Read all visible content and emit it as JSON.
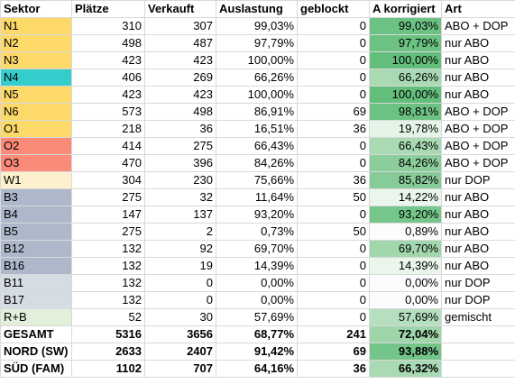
{
  "colors": {
    "yellow": "#fdd96a",
    "cyan": "#35cccc",
    "salmon": "#fb8b78",
    "cream": "#fdf0cd",
    "steel": "#adb9ca",
    "lightsteel": "#d6dce4",
    "lightgreen": "#e2efda",
    "green_strong": "#63be7b"
  },
  "headers": [
    "Sektor",
    "Plätze",
    "Verkauft",
    "Auslastung",
    "geblockt",
    "A korrigiert",
    "Art"
  ],
  "rows": [
    {
      "sektor": "N1",
      "plaetze": "310",
      "verkauft": "307",
      "auslastung": "99,03%",
      "geblockt": "0",
      "korrigiert": "99,03%",
      "art": "ABO + DOP",
      "color": "#fdd96a",
      "k_color": "#6cc283",
      "total": false
    },
    {
      "sektor": "N2",
      "plaetze": "498",
      "verkauft": "487",
      "auslastung": "97,79%",
      "geblockt": "0",
      "korrigiert": "97,79%",
      "art": "nur ABO",
      "color": "#fdd96a",
      "k_color": "#6cc283",
      "total": false
    },
    {
      "sektor": "N3",
      "plaetze": "423",
      "verkauft": "423",
      "auslastung": "100,00%",
      "geblockt": "0",
      "korrigiert": "100,00%",
      "art": "nur ABO",
      "color": "#fdd96a",
      "k_color": "#63be7b",
      "total": false
    },
    {
      "sektor": "N4",
      "plaetze": "406",
      "verkauft": "269",
      "auslastung": "66,26%",
      "geblockt": "0",
      "korrigiert": "66,26%",
      "art": "nur ABO",
      "color": "#35cccc",
      "k_color": "#a9dab4",
      "total": false
    },
    {
      "sektor": "N5",
      "plaetze": "423",
      "verkauft": "423",
      "auslastung": "100,00%",
      "geblockt": "0",
      "korrigiert": "100,00%",
      "art": "nur ABO",
      "color": "#fdd96a",
      "k_color": "#63be7b",
      "total": false
    },
    {
      "sektor": "N6",
      "plaetze": "573",
      "verkauft": "498",
      "auslastung": "86,91%",
      "geblockt": "69",
      "korrigiert": "98,81%",
      "art": "ABO + DOP",
      "color": "#fdd96a",
      "k_color": "#6cc283",
      "total": false
    },
    {
      "sektor": "O1",
      "plaetze": "218",
      "verkauft": "36",
      "auslastung": "16,51%",
      "geblockt": "36",
      "korrigiert": "19,78%",
      "art": "ABO + DOP",
      "color": "#fdd96a",
      "k_color": "#e4f4e7",
      "total": false
    },
    {
      "sektor": "O2",
      "plaetze": "414",
      "verkauft": "275",
      "auslastung": "66,43%",
      "geblockt": "0",
      "korrigiert": "66,43%",
      "art": "ABO + DOP",
      "color": "#fb8b78",
      "k_color": "#a9dab4",
      "total": false
    },
    {
      "sektor": "O3",
      "plaetze": "470",
      "verkauft": "396",
      "auslastung": "84,26%",
      "geblockt": "0",
      "korrigiert": "84,26%",
      "art": "ABO + DOP",
      "color": "#fb8b78",
      "k_color": "#8bcd9b",
      "total": false
    },
    {
      "sektor": "W1",
      "plaetze": "304",
      "verkauft": "230",
      "auslastung": "75,66%",
      "geblockt": "36",
      "korrigiert": "85,82%",
      "art": "nur DOP",
      "color": "#fdf0cd",
      "k_color": "#87cb98",
      "total": false
    },
    {
      "sektor": "B3",
      "plaetze": "275",
      "verkauft": "32",
      "auslastung": "11,64%",
      "geblockt": "50",
      "korrigiert": "14,22%",
      "art": "nur ABO",
      "color": "#adb9ca",
      "k_color": "#eaf6ec",
      "total": false
    },
    {
      "sektor": "B4",
      "plaetze": "147",
      "verkauft": "137",
      "auslastung": "93,20%",
      "geblockt": "0",
      "korrigiert": "93,20%",
      "art": "nur ABO",
      "color": "#adb9ca",
      "k_color": "#75c68b",
      "total": false
    },
    {
      "sektor": "B5",
      "plaetze": "275",
      "verkauft": "2",
      "auslastung": "0,73%",
      "geblockt": "50",
      "korrigiert": "0,89%",
      "art": "nur ABO",
      "color": "#adb9ca",
      "k_color": "#fbfdfb",
      "total": false
    },
    {
      "sektor": "B12",
      "plaetze": "132",
      "verkauft": "92",
      "auslastung": "69,70%",
      "geblockt": "0",
      "korrigiert": "69,70%",
      "art": "nur ABO",
      "color": "#adb9ca",
      "k_color": "#a2d7ae",
      "total": false
    },
    {
      "sektor": "B16",
      "plaetze": "132",
      "verkauft": "19",
      "auslastung": "14,39%",
      "geblockt": "0",
      "korrigiert": "14,39%",
      "art": "nur ABO",
      "color": "#adb9ca",
      "k_color": "#eaf6ec",
      "total": false
    },
    {
      "sektor": "B11",
      "plaetze": "132",
      "verkauft": "0",
      "auslastung": "0,00%",
      "geblockt": "0",
      "korrigiert": "0,00%",
      "art": "nur DOP",
      "color": "#d6dce4",
      "k_color": "#fcfcff",
      "total": false
    },
    {
      "sektor": "B17",
      "plaetze": "132",
      "verkauft": "0",
      "auslastung": "0,00%",
      "geblockt": "0",
      "korrigiert": "0,00%",
      "art": "nur DOP",
      "color": "#d6dce4",
      "k_color": "#fcfcff",
      "total": false
    },
    {
      "sektor": "R+B",
      "plaetze": "52",
      "verkauft": "30",
      "auslastung": "57,69%",
      "geblockt": "0",
      "korrigiert": "57,69%",
      "art": "gemischt",
      "color": "#e2efda",
      "k_color": "#b5dfbf",
      "total": false
    },
    {
      "sektor": "GESAMT",
      "plaetze": "5316",
      "verkauft": "3656",
      "auslastung": "68,77%",
      "geblockt": "241",
      "korrigiert": "72,04%",
      "art": "",
      "color": "#ffffff",
      "k_color": "#9ed5aa",
      "total": true
    },
    {
      "sektor": "NORD (SW)",
      "plaetze": "2633",
      "verkauft": "2407",
      "auslastung": "91,42%",
      "geblockt": "69",
      "korrigiert": "93,88%",
      "art": "",
      "color": "#ffffff",
      "k_color": "#74c58a",
      "total": true
    },
    {
      "sektor": "SÜD (FAM)",
      "plaetze": "1102",
      "verkauft": "707",
      "auslastung": "64,16%",
      "geblockt": "36",
      "korrigiert": "66,32%",
      "art": "",
      "color": "#ffffff",
      "k_color": "#a9dab4",
      "total": true
    }
  ]
}
